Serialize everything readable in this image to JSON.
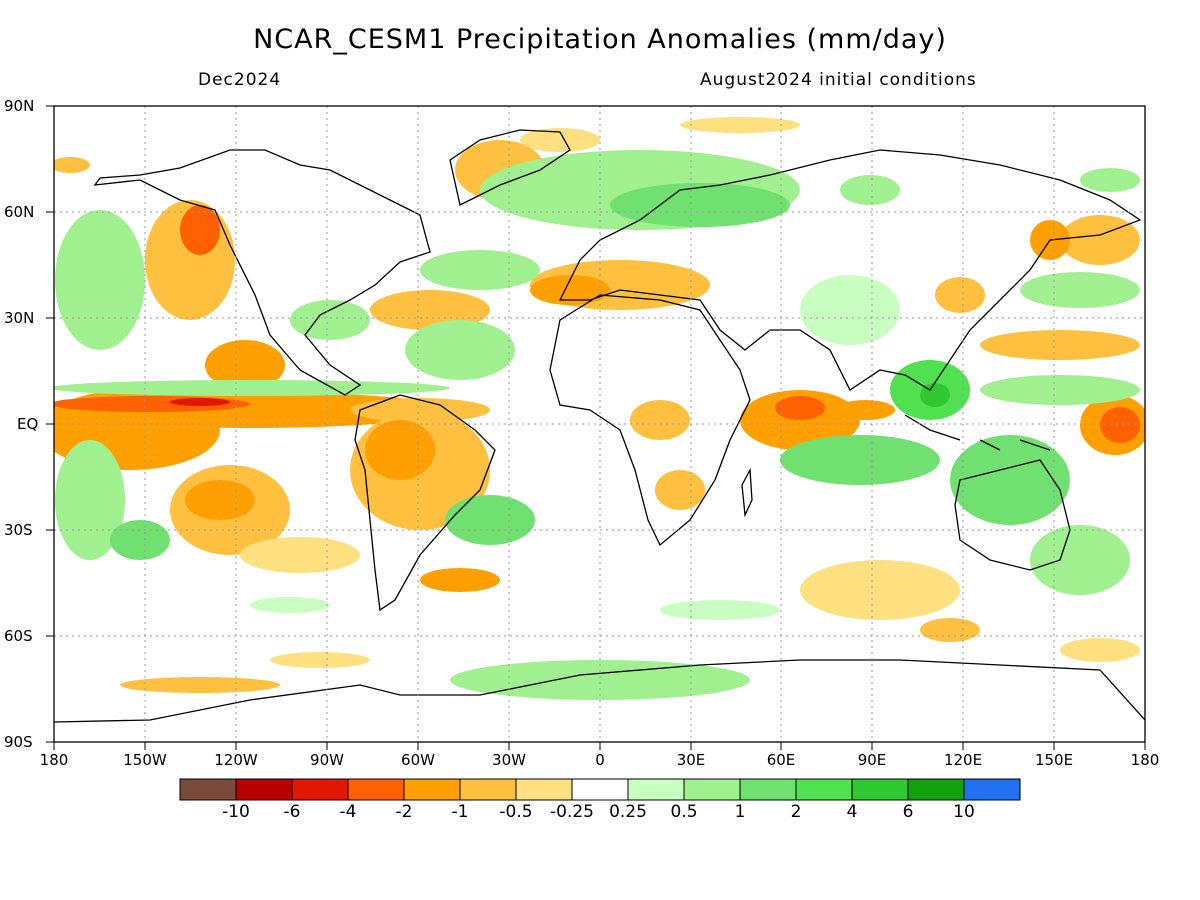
{
  "header": {
    "title": "NCAR_CESM1 Precipitation Anomalies (mm/day)",
    "valid_month": "Dec2024",
    "init_conditions": "August2024 initial conditions"
  },
  "axes": {
    "lat_labels": [
      "90N",
      "60N",
      "30N",
      "EQ",
      "30S",
      "60S",
      "90S"
    ],
    "lon_labels": [
      "180",
      "150W",
      "120W",
      "90W",
      "60W",
      "30W",
      "0",
      "30E",
      "60E",
      "90E",
      "120E",
      "150E",
      "180"
    ]
  },
  "colorbar": {
    "colors": [
      "#7a4a3a",
      "#b80000",
      "#e01800",
      "#ff6000",
      "#ffa000",
      "#ffc040",
      "#ffe080",
      "#ffffff",
      "#c8ffc0",
      "#a0f090",
      "#70e070",
      "#50e050",
      "#30c830",
      "#10a010",
      "#2070f0"
    ],
    "labels": [
      "-10",
      "-6",
      "-4",
      "-2",
      "-1",
      "-0.5",
      "-0.25",
      "0.25",
      "0.5",
      "1",
      "2",
      "4",
      "6",
      "10"
    ]
  },
  "map": {
    "projection": "cylindrical equidistant",
    "grid": "dotted 30° lines",
    "dry_colors": {
      "light": "#ffe080",
      "mid": "#ffc040",
      "strong": "#ffa000",
      "stronger": "#ff6000",
      "extreme": "#e01800"
    },
    "wet_colors": {
      "light": "#c8ffc0",
      "mid": "#a0f090",
      "strong": "#70e070",
      "stronger": "#50e050",
      "extreme": "#30c830"
    }
  }
}
